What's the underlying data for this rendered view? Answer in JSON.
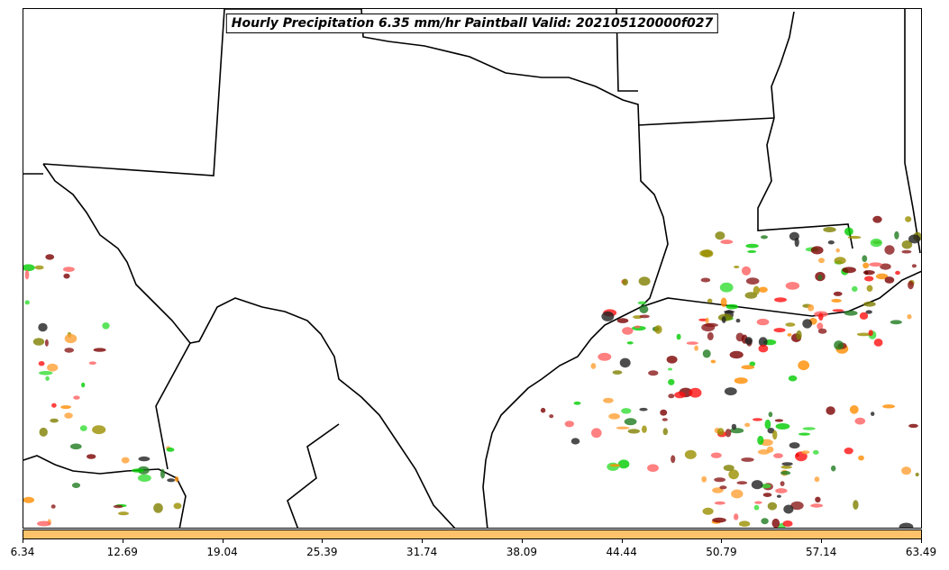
{
  "title": "Hourly Precipitation 6.35 mm/hr Paintball Valid: 202105120000f027",
  "colorbar": {
    "color": "#fec36a",
    "ticks": [
      "6.34",
      "12.69",
      "19.04",
      "25.39",
      "31.74",
      "38.09",
      "44.44",
      "50.79",
      "57.14",
      "63.49"
    ]
  },
  "palette": [
    "#7a0000",
    "#8b1a1a",
    "#ff8c00",
    "#ffa033",
    "#00cc00",
    "#33dd33",
    "#1f7a1f",
    "#808000",
    "#9a8f00",
    "#ff1010",
    "#202020",
    "#ff6060"
  ]
}
